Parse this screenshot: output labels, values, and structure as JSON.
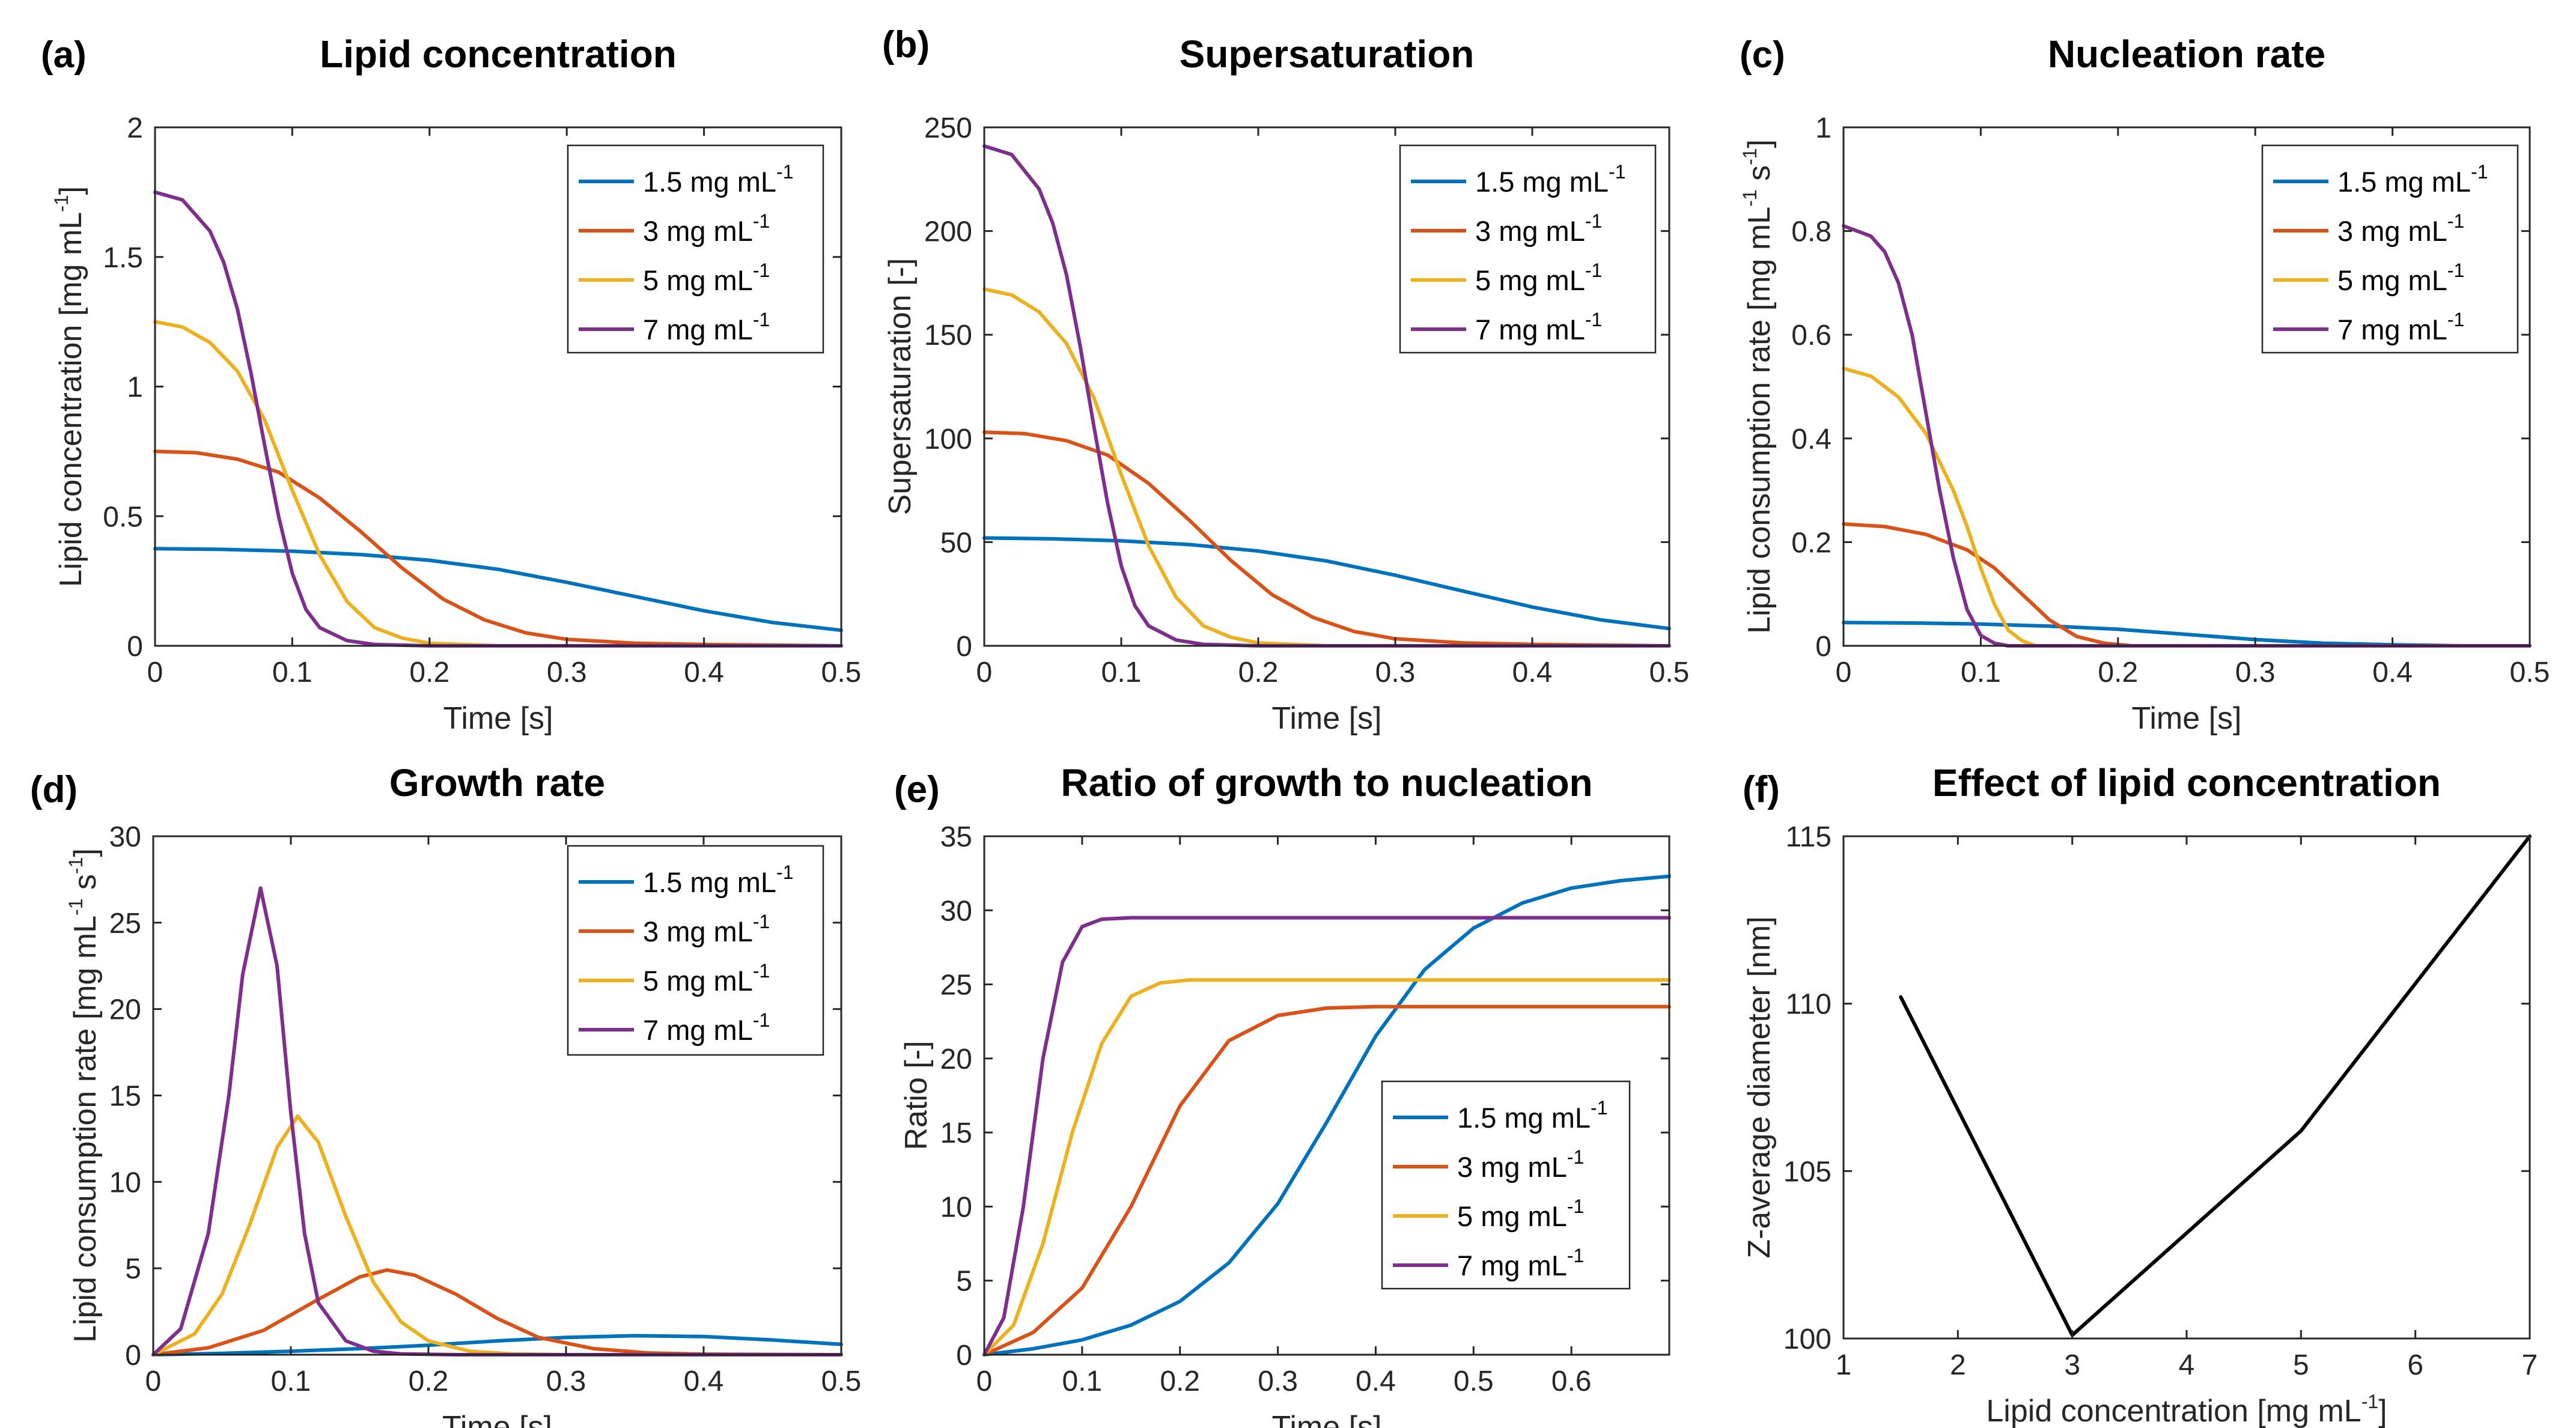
{
  "series_colors": [
    "#0072BD",
    "#D95319",
    "#EDB120",
    "#7E2F8E"
  ],
  "chart_data": [
    {
      "id": "a",
      "type": "line",
      "panel_label": "(a)",
      "title": "Lipid concentration",
      "xlabel": "Time [s]",
      "ylabel": "Lipid concentration [mg mL",
      "ylabel_sup": "-1",
      "ylabel_end": "]",
      "xlim": [
        0,
        0.5
      ],
      "ylim": [
        0,
        2
      ],
      "xticks": [
        0,
        0.1,
        0.2,
        0.3,
        0.4,
        0.5
      ],
      "xtick_labels": [
        "0",
        "0.1",
        "0.2",
        "0.3",
        "0.4",
        "0.5"
      ],
      "yticks": [
        0,
        0.5,
        1,
        1.5,
        2
      ],
      "ytick_labels": [
        "0",
        "0.5",
        "1",
        "1.5",
        "2"
      ],
      "legend_position": "top-right",
      "series": [
        {
          "name": "1.5 mg mL",
          "sup": "-1",
          "x": [
            0,
            0.05,
            0.1,
            0.15,
            0.2,
            0.25,
            0.3,
            0.35,
            0.4,
            0.45,
            0.5
          ],
          "y": [
            0.375,
            0.372,
            0.365,
            0.352,
            0.33,
            0.295,
            0.245,
            0.19,
            0.135,
            0.09,
            0.06
          ]
        },
        {
          "name": "3 mg mL",
          "sup": "-1",
          "x": [
            0,
            0.03,
            0.06,
            0.09,
            0.12,
            0.15,
            0.18,
            0.21,
            0.24,
            0.27,
            0.3,
            0.35,
            0.4,
            0.5
          ],
          "y": [
            0.75,
            0.745,
            0.72,
            0.67,
            0.57,
            0.44,
            0.3,
            0.18,
            0.1,
            0.05,
            0.025,
            0.01,
            0.005,
            0.0
          ]
        },
        {
          "name": "5 mg mL",
          "sup": "-1",
          "x": [
            0,
            0.02,
            0.04,
            0.06,
            0.08,
            0.1,
            0.12,
            0.14,
            0.16,
            0.18,
            0.2,
            0.25,
            0.3,
            0.5
          ],
          "y": [
            1.25,
            1.23,
            1.17,
            1.06,
            0.87,
            0.6,
            0.35,
            0.17,
            0.07,
            0.03,
            0.01,
            0.0,
            0.0,
            0.0
          ]
        },
        {
          "name": "7 mg mL",
          "sup": "-1",
          "x": [
            0,
            0.02,
            0.04,
            0.05,
            0.06,
            0.07,
            0.08,
            0.09,
            0.1,
            0.11,
            0.12,
            0.14,
            0.16,
            0.2,
            0.5
          ],
          "y": [
            1.75,
            1.72,
            1.6,
            1.48,
            1.3,
            1.05,
            0.77,
            0.5,
            0.28,
            0.14,
            0.07,
            0.02,
            0.005,
            0.0,
            0.0
          ]
        }
      ]
    },
    {
      "id": "b",
      "type": "line",
      "panel_label": "(b)",
      "title": "Supersaturation",
      "xlabel": "Time [s]",
      "ylabel": "Supersaturation [-]",
      "ylabel_sup": "",
      "ylabel_end": "",
      "xlim": [
        0,
        0.5
      ],
      "ylim": [
        0,
        250
      ],
      "xticks": [
        0,
        0.1,
        0.2,
        0.3,
        0.4,
        0.5
      ],
      "xtick_labels": [
        "0",
        "0.1",
        "0.2",
        "0.3",
        "0.4",
        "0.5"
      ],
      "yticks": [
        0,
        50,
        100,
        150,
        200,
        250
      ],
      "ytick_labels": [
        "0",
        "50",
        "100",
        "150",
        "200",
        "250"
      ],
      "legend_position": "top-right",
      "series": [
        {
          "name": "1.5 mg mL",
          "sup": "-1",
          "x": [
            0,
            0.05,
            0.1,
            0.15,
            0.2,
            0.25,
            0.3,
            0.35,
            0.4,
            0.45,
            0.5
          ],
          "y": [
            52,
            51.6,
            50.6,
            48.8,
            45.7,
            40.9,
            34,
            26.3,
            18.7,
            12.5,
            8.3
          ]
        },
        {
          "name": "3 mg mL",
          "sup": "-1",
          "x": [
            0,
            0.03,
            0.06,
            0.09,
            0.12,
            0.15,
            0.18,
            0.21,
            0.24,
            0.27,
            0.3,
            0.35,
            0.4,
            0.5
          ],
          "y": [
            103,
            102.3,
            98.9,
            92,
            78.3,
            60.4,
            41.2,
            24.7,
            13.7,
            6.9,
            3.4,
            1.4,
            0.7,
            0.0
          ]
        },
        {
          "name": "5 mg mL",
          "sup": "-1",
          "x": [
            0,
            0.02,
            0.04,
            0.06,
            0.08,
            0.1,
            0.12,
            0.14,
            0.16,
            0.18,
            0.2,
            0.25,
            0.3,
            0.5
          ],
          "y": [
            172,
            169.2,
            161,
            145.8,
            119.7,
            82.6,
            48.2,
            23.4,
            9.6,
            4.1,
            1.4,
            0.0,
            0.0,
            0.0
          ]
        },
        {
          "name": "7 mg mL",
          "sup": "-1",
          "x": [
            0,
            0.02,
            0.04,
            0.05,
            0.06,
            0.07,
            0.08,
            0.09,
            0.1,
            0.11,
            0.12,
            0.14,
            0.16,
            0.2,
            0.5
          ],
          "y": [
            241,
            236.9,
            220.3,
            203.8,
            179,
            144.6,
            106,
            68.9,
            38.6,
            19.3,
            9.6,
            2.8,
            0.7,
            0.0,
            0.0
          ]
        }
      ]
    },
    {
      "id": "c",
      "type": "line",
      "panel_label": "(c)",
      "title": "Nucleation rate",
      "xlabel": "Time [s]",
      "ylabel": "Lipid consumption rate [mg mL",
      "ylabel_sup": "-1",
      "ylabel_mid": " s",
      "ylabel_sup2": "-1",
      "ylabel_end": "]",
      "xlim": [
        0,
        0.5
      ],
      "ylim": [
        0,
        1
      ],
      "xticks": [
        0,
        0.1,
        0.2,
        0.3,
        0.4,
        0.5
      ],
      "xtick_labels": [
        "0",
        "0.1",
        "0.2",
        "0.3",
        "0.4",
        "0.5"
      ],
      "yticks": [
        0,
        0.2,
        0.4,
        0.6,
        0.8,
        1
      ],
      "ytick_labels": [
        "0",
        "0.2",
        "0.4",
        "0.6",
        "0.8",
        "1"
      ],
      "legend_position": "top-right",
      "series": [
        {
          "name": "1.5 mg mL",
          "sup": "-1",
          "x": [
            0,
            0.05,
            0.1,
            0.15,
            0.2,
            0.25,
            0.3,
            0.35,
            0.4,
            0.45,
            0.5
          ],
          "y": [
            0.045,
            0.044,
            0.042,
            0.038,
            0.032,
            0.022,
            0.012,
            0.005,
            0.002,
            0.0,
            0.0
          ]
        },
        {
          "name": "3 mg mL",
          "sup": "-1",
          "x": [
            0,
            0.03,
            0.06,
            0.09,
            0.11,
            0.13,
            0.15,
            0.17,
            0.19,
            0.21,
            0.25,
            0.5
          ],
          "y": [
            0.235,
            0.23,
            0.215,
            0.185,
            0.15,
            0.1,
            0.05,
            0.018,
            0.005,
            0.0,
            0.0,
            0.0
          ]
        },
        {
          "name": "5 mg mL",
          "sup": "-1",
          "x": [
            0,
            0.02,
            0.04,
            0.06,
            0.08,
            0.09,
            0.1,
            0.11,
            0.12,
            0.13,
            0.14,
            0.16,
            0.5
          ],
          "y": [
            0.535,
            0.52,
            0.48,
            0.41,
            0.3,
            0.23,
            0.15,
            0.08,
            0.03,
            0.01,
            0.0,
            0.0,
            0.0
          ]
        },
        {
          "name": "7 mg mL",
          "sup": "-1",
          "x": [
            0,
            0.02,
            0.03,
            0.04,
            0.05,
            0.06,
            0.07,
            0.08,
            0.09,
            0.1,
            0.11,
            0.12,
            0.14,
            0.5
          ],
          "y": [
            0.81,
            0.79,
            0.76,
            0.7,
            0.6,
            0.45,
            0.3,
            0.17,
            0.07,
            0.02,
            0.005,
            0.0,
            0.0,
            0.0
          ]
        }
      ]
    },
    {
      "id": "d",
      "type": "line",
      "panel_label": "(d)",
      "title": "Growth rate",
      "xlabel": "Time [s]",
      "ylabel": "Lipid consumption rate [mg mL",
      "ylabel_sup": "-1",
      "ylabel_mid": " s",
      "ylabel_sup2": "-1",
      "ylabel_end": "]",
      "xlim": [
        0,
        0.5
      ],
      "ylim": [
        0,
        30
      ],
      "xticks": [
        0,
        0.1,
        0.2,
        0.3,
        0.4,
        0.5
      ],
      "xtick_labels": [
        "0",
        "0.1",
        "0.2",
        "0.3",
        "0.4",
        "0.5"
      ],
      "yticks": [
        0,
        5,
        10,
        15,
        20,
        25,
        30
      ],
      "ytick_labels": [
        "0",
        "5",
        "10",
        "15",
        "20",
        "25",
        "30"
      ],
      "legend_position": "top-right",
      "series": [
        {
          "name": "1.5 mg mL",
          "sup": "-1",
          "x": [
            0,
            0.05,
            0.1,
            0.15,
            0.2,
            0.25,
            0.3,
            0.35,
            0.4,
            0.45,
            0.5
          ],
          "y": [
            0.0,
            0.08,
            0.2,
            0.35,
            0.55,
            0.8,
            1.0,
            1.1,
            1.05,
            0.85,
            0.6
          ]
        },
        {
          "name": "3 mg mL",
          "sup": "-1",
          "x": [
            0,
            0.04,
            0.08,
            0.12,
            0.15,
            0.17,
            0.19,
            0.22,
            0.25,
            0.28,
            0.32,
            0.36,
            0.4,
            0.5
          ],
          "y": [
            0.0,
            0.4,
            1.4,
            3.2,
            4.5,
            4.9,
            4.6,
            3.5,
            2.1,
            1.0,
            0.35,
            0.1,
            0.03,
            0.0
          ]
        },
        {
          "name": "5 mg mL",
          "sup": "-1",
          "x": [
            0,
            0.03,
            0.05,
            0.07,
            0.09,
            0.105,
            0.12,
            0.14,
            0.16,
            0.18,
            0.2,
            0.23,
            0.26,
            0.3,
            0.5
          ],
          "y": [
            0.0,
            1.2,
            3.5,
            7.5,
            12,
            13.8,
            12.3,
            8,
            4.2,
            1.9,
            0.8,
            0.2,
            0.05,
            0.0,
            0.0
          ]
        },
        {
          "name": "7 mg mL",
          "sup": "-1",
          "x": [
            0,
            0.02,
            0.04,
            0.055,
            0.065,
            0.078,
            0.09,
            0.1,
            0.11,
            0.12,
            0.14,
            0.16,
            0.18,
            0.22,
            0.5
          ],
          "y": [
            0.0,
            1.5,
            7,
            15,
            22,
            27,
            22.5,
            14,
            7,
            3,
            0.8,
            0.2,
            0.05,
            0.0,
            0.0
          ]
        }
      ]
    },
    {
      "id": "e",
      "type": "line",
      "panel_label": "(e)",
      "title": "Ratio of growth to nucleation",
      "xlabel": "Time [s]",
      "ylabel": "Ratio [-]",
      "ylabel_sup": "",
      "ylabel_end": "",
      "xlim": [
        0,
        0.7
      ],
      "ylim": [
        0,
        35
      ],
      "xticks": [
        0,
        0.1,
        0.2,
        0.3,
        0.4,
        0.5,
        0.6
      ],
      "xtick_labels": [
        "0",
        "0.1",
        "0.2",
        "0.3",
        "0.4",
        "0.5",
        "0.6"
      ],
      "yticks": [
        0,
        5,
        10,
        15,
        20,
        25,
        30,
        35
      ],
      "ytick_labels": [
        "0",
        "5",
        "10",
        "15",
        "20",
        "25",
        "30",
        "35"
      ],
      "legend_position": "bottom-right",
      "series": [
        {
          "name": "1.5 mg mL",
          "sup": "-1",
          "x": [
            0,
            0.05,
            0.1,
            0.15,
            0.2,
            0.25,
            0.3,
            0.35,
            0.4,
            0.45,
            0.5,
            0.55,
            0.6,
            0.65,
            0.7
          ],
          "y": [
            0.0,
            0.4,
            1.0,
            2.0,
            3.6,
            6.2,
            10.2,
            15.7,
            21.5,
            26,
            28.8,
            30.5,
            31.5,
            32,
            32.3
          ]
        },
        {
          "name": "3 mg mL",
          "sup": "-1",
          "x": [
            0,
            0.05,
            0.1,
            0.15,
            0.2,
            0.25,
            0.3,
            0.35,
            0.4,
            0.45,
            0.5,
            0.7
          ],
          "y": [
            0.0,
            1.5,
            4.5,
            10,
            16.8,
            21.2,
            22.9,
            23.4,
            23.5,
            23.5,
            23.5,
            23.5
          ]
        },
        {
          "name": "5 mg mL",
          "sup": "-1",
          "x": [
            0,
            0.03,
            0.06,
            0.09,
            0.12,
            0.15,
            0.18,
            0.21,
            0.25,
            0.3,
            0.7
          ],
          "y": [
            0.0,
            2.0,
            7.5,
            15,
            21,
            24.2,
            25.1,
            25.3,
            25.3,
            25.3,
            25.3
          ]
        },
        {
          "name": "7 mg mL",
          "sup": "-1",
          "x": [
            0,
            0.02,
            0.04,
            0.06,
            0.08,
            0.1,
            0.12,
            0.15,
            0.2,
            0.7
          ],
          "y": [
            0.0,
            2.5,
            10,
            20,
            26.5,
            28.9,
            29.4,
            29.5,
            29.5,
            29.5
          ]
        }
      ]
    },
    {
      "id": "f",
      "type": "line",
      "panel_label": "(f)",
      "title": "Effect of lipid concentration",
      "xlabel": "Lipid concentration [mg mL",
      "xlabel_sup": "-1",
      "xlabel_end": "]",
      "ylabel": "Z-average diameter [nm]",
      "ylabel_sup": "",
      "ylabel_end": "",
      "xlim": [
        1,
        7
      ],
      "ylim": [
        100,
        115
      ],
      "xticks": [
        1,
        2,
        3,
        4,
        5,
        6,
        7
      ],
      "xtick_labels": [
        "1",
        "2",
        "3",
        "4",
        "5",
        "6",
        "7"
      ],
      "yticks": [
        100,
        105,
        110,
        115
      ],
      "ytick_labels": [
        "100",
        "105",
        "110",
        "115"
      ],
      "legend_position": "none",
      "series": [
        {
          "name": "",
          "color": "#000000",
          "x": [
            1.5,
            3,
            5,
            7
          ],
          "y": [
            110.2,
            100.1,
            106.2,
            115
          ]
        }
      ]
    }
  ]
}
